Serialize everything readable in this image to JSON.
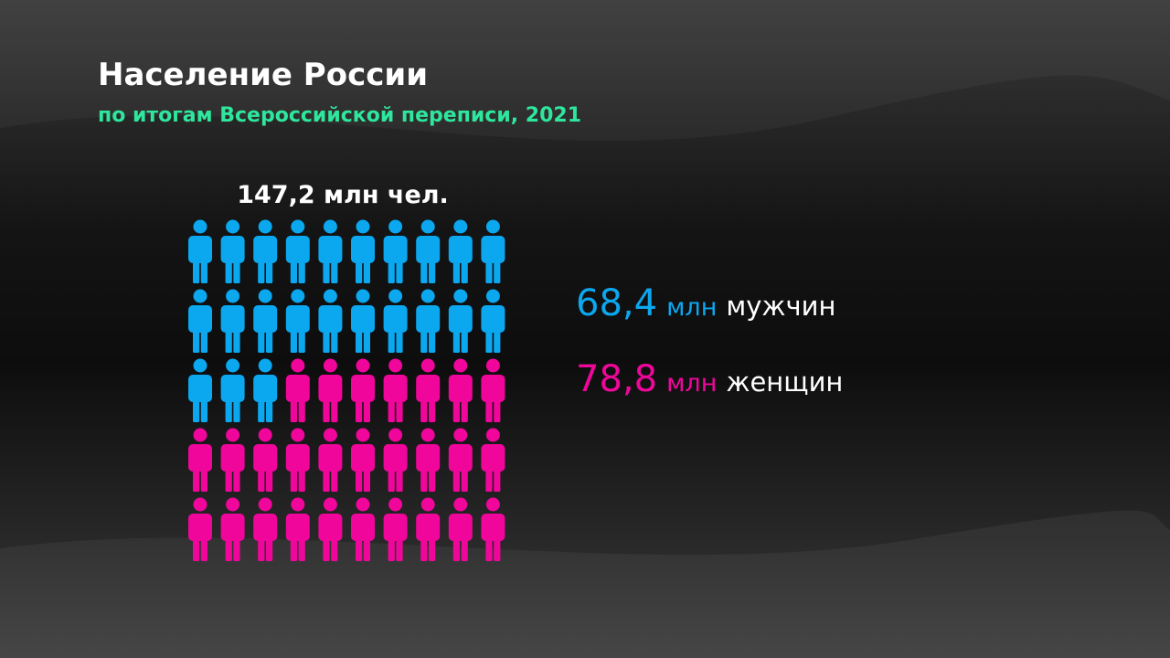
{
  "chart_data": {
    "type": "pictogram",
    "title": "Население России",
    "subtitle": "по итогам Всероссийской переписи, 2021",
    "total_label": "147,2 млн чел.",
    "unit": "млн",
    "series": [
      {
        "name": "мужчин",
        "color": "#0ba7ef",
        "values": [
          68.4
        ],
        "value_labels": [
          "68,4"
        ]
      },
      {
        "name": "женщин",
        "color": "#f0069b",
        "values": [
          78.8
        ],
        "value_labels": [
          "78,8"
        ]
      }
    ]
  }
}
